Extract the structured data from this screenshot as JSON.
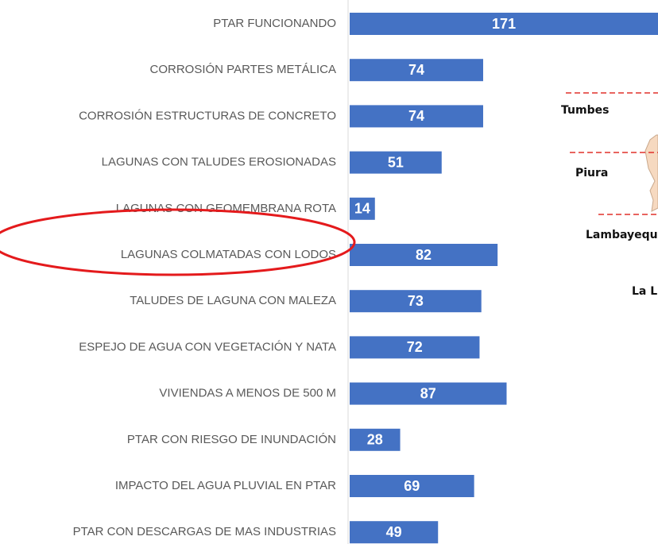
{
  "chart_data": {
    "type": "bar",
    "orientation": "horizontal",
    "color": "#4472c4",
    "categories": [
      "PTAR FUNCIONANDO",
      "CORROSIÓN PARTES METÁLICA",
      "CORROSIÓN ESTRUCTURAS DE CONCRETO",
      "LAGUNAS CON TALUDES EROSIONADAS",
      "LAGUNAS CON GEOMEMBRANA ROTA",
      "LAGUNAS COLMATADAS CON LODOS",
      "TALUDES DE LAGUNA CON MALEZA",
      "ESPEJO DE AGUA CON VEGETACIÓN Y NATA",
      "VIVIENDAS A MENOS DE 500 M",
      "PTAR CON RIESGO DE INUNDACIÓN",
      "IMPACTO DEL AGUA PLUVIAL EN PTAR",
      "PTAR CON DESCARGAS DE MAS INDUSTRIAS"
    ],
    "values": [
      171,
      74,
      74,
      51,
      14,
      82,
      73,
      72,
      87,
      28,
      69,
      49
    ]
  },
  "map_labels": [
    "Tumbes",
    "Piura",
    "Lambayequ",
    "La L"
  ]
}
